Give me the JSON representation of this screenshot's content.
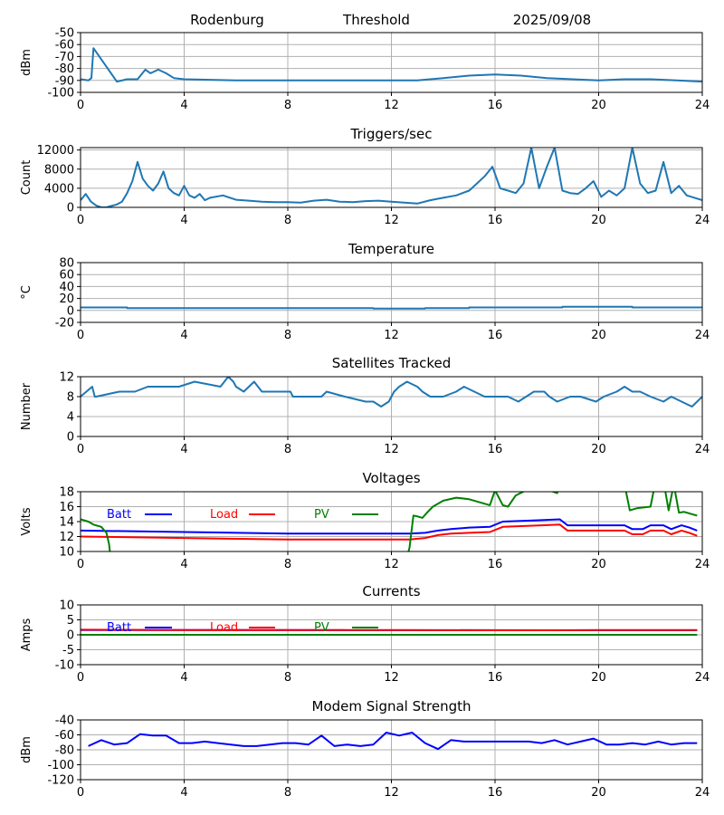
{
  "header": {
    "site": "Rodenburg",
    "mode": "Threshold",
    "date": "2025/09/08"
  },
  "chart_data": [
    {
      "type": "line",
      "title": "",
      "ylabel": "dBm",
      "ylim": [
        -100,
        -50
      ],
      "yticks": [
        "-50",
        "-60",
        "-70",
        "-80",
        "-90",
        "-100"
      ],
      "xlim": [
        0,
        24
      ],
      "xticks": [
        "0",
        "4",
        "8",
        "12",
        "16",
        "20",
        "24"
      ],
      "series": [
        {
          "color": "#1f77b4",
          "x": [
            0,
            0.3,
            0.42,
            0.5,
            1.4,
            1.8,
            2.2,
            2.5,
            2.7,
            3.0,
            3.3,
            3.6,
            4,
            6,
            8,
            10,
            12,
            13,
            14,
            15,
            16,
            17,
            18,
            19,
            20,
            21,
            22,
            23,
            24
          ],
          "y": [
            -89,
            -90,
            -88,
            -63,
            -91,
            -89,
            -89,
            -81,
            -84,
            -81,
            -84,
            -88,
            -89,
            -90,
            -90,
            -90,
            -90,
            -90,
            -88,
            -86,
            -85,
            -86,
            -88,
            -89,
            -90,
            -89,
            -89,
            -90,
            -91
          ]
        }
      ]
    },
    {
      "type": "line",
      "title": "Triggers/sec",
      "ylabel": "Count",
      "ylim": [
        0,
        12500
      ],
      "yticks": [
        "0",
        "4000",
        "8000",
        "12000"
      ],
      "xlim": [
        0,
        24
      ],
      "xticks": [
        "0",
        "4",
        "8",
        "12",
        "16",
        "20",
        "24"
      ],
      "series": [
        {
          "color": "#1f77b4",
          "x": [
            0,
            0.2,
            0.4,
            0.6,
            0.8,
            1.0,
            1.2,
            1.4,
            1.6,
            1.8,
            2.0,
            2.2,
            2.4,
            2.6,
            2.8,
            3.0,
            3.2,
            3.4,
            3.6,
            3.8,
            4.0,
            4.2,
            4.4,
            4.6,
            4.8,
            5.0,
            5.5,
            6.0,
            6.5,
            7.0,
            7.5,
            8.0,
            8.5,
            9.0,
            9.5,
            10.0,
            10.5,
            11.0,
            11.5,
            12.0,
            12.5,
            13.0,
            13.5,
            14.0,
            14.5,
            15.0,
            15.3,
            15.6,
            15.9,
            16.2,
            16.5,
            16.8,
            17.1,
            17.4,
            17.7,
            18.0,
            18.3,
            18.6,
            18.9,
            19.2,
            19.5,
            19.8,
            20.1,
            20.4,
            20.7,
            21.0,
            21.3,
            21.6,
            21.9,
            22.2,
            22.5,
            22.8,
            23.1,
            23.4,
            23.7,
            24.0
          ],
          "y": [
            1500,
            2800,
            1200,
            400,
            0,
            0,
            300,
            600,
            1200,
            3000,
            5500,
            9500,
            6000,
            4500,
            3500,
            5000,
            7500,
            4000,
            3000,
            2500,
            4500,
            2500,
            2000,
            2800,
            1500,
            2000,
            2500,
            1600,
            1400,
            1200,
            1100,
            1100,
            1000,
            1400,
            1600,
            1200,
            1100,
            1300,
            1400,
            1200,
            1000,
            800,
            1500,
            2000,
            2500,
            3500,
            5000,
            6500,
            8500,
            4000,
            3500,
            3000,
            5000,
            12500,
            4000,
            8500,
            12500,
            3500,
            3000,
            2800,
            4000,
            5500,
            2200,
            3500,
            2500,
            4000,
            12500,
            5000,
            3000,
            3500,
            9500,
            3000,
            4500,
            2500,
            2000,
            1500
          ]
        }
      ]
    },
    {
      "type": "line",
      "title": "Temperature",
      "ylabel": "°C",
      "ylim": [
        -20,
        80
      ],
      "yticks": [
        "-20",
        "0",
        "20",
        "40",
        "60",
        "80"
      ],
      "xlim": [
        0,
        24
      ],
      "xticks": [
        "0",
        "4",
        "8",
        "12",
        "16",
        "20",
        "24"
      ],
      "series": [
        {
          "color": "#1f77b4",
          "x": [
            0,
            1.8,
            1.8,
            11.3,
            11.3,
            13.3,
            13.3,
            15.0,
            15.0,
            18.6,
            18.6,
            21.3,
            21.3,
            24
          ],
          "y": [
            5,
            5,
            4,
            4,
            3,
            3,
            4,
            4,
            5,
            5,
            6,
            6,
            5,
            5
          ]
        }
      ]
    },
    {
      "type": "line",
      "title": "Satellites Tracked",
      "ylabel": "Number",
      "ylim": [
        0,
        12
      ],
      "yticks": [
        "0",
        "4",
        "8",
        "12"
      ],
      "xlim": [
        0,
        24
      ],
      "xticks": [
        "0",
        "4",
        "8",
        "12",
        "16",
        "20",
        "24"
      ],
      "series": [
        {
          "color": "#1f77b4",
          "x": [
            0,
            0.45,
            0.5,
            0.55,
            0.6,
            1.5,
            2.1,
            2.6,
            3.1,
            3.8,
            4.4,
            5.4,
            5.7,
            5.9,
            6.0,
            6.3,
            6.7,
            7.0,
            8.1,
            8.2,
            9.3,
            9.5,
            10.2,
            11.0,
            11.3,
            11.6,
            11.9,
            12.1,
            12.3,
            12.6,
            13.0,
            13.2,
            13.5,
            14.0,
            14.5,
            14.8,
            15.2,
            15.6,
            16.2,
            16.5,
            16.9,
            17.2,
            17.5,
            17.9,
            18.1,
            18.4,
            18.9,
            19.3,
            19.9,
            20.2,
            20.7,
            21.0,
            21.3,
            21.6,
            22.0,
            22.5,
            22.8,
            23.2,
            23.6,
            24
          ],
          "y": [
            8,
            10,
            9,
            8,
            8,
            9,
            9,
            10,
            10,
            10,
            11,
            10,
            12,
            11,
            10,
            9,
            11,
            9,
            9,
            8,
            8,
            9,
            8,
            7,
            7,
            6,
            7,
            9,
            10,
            11,
            10,
            9,
            8,
            8,
            9,
            10,
            9,
            8,
            8,
            8,
            7,
            8,
            9,
            9,
            8,
            7,
            8,
            8,
            7,
            8,
            9,
            10,
            9,
            9,
            8,
            7,
            8,
            7,
            6,
            8
          ]
        }
      ]
    },
    {
      "type": "line",
      "title": "Voltages",
      "ylabel": "Volts",
      "ylim": [
        10,
        18
      ],
      "yticks": [
        "10",
        "12",
        "14",
        "16",
        "18"
      ],
      "xlim": [
        0,
        24
      ],
      "xticks": [
        "0",
        "4",
        "8",
        "12",
        "16",
        "20",
        "24"
      ],
      "legend": {
        "entries": [
          "Batt",
          "Load",
          "PV"
        ]
      },
      "series": [
        {
          "name": "Batt",
          "color": "#0000ff",
          "x": [
            0,
            4,
            8,
            12,
            12.7,
            13.3,
            13.8,
            14.3,
            15,
            15.8,
            16.3,
            17,
            17.8,
            18.5,
            18.8,
            19,
            20,
            21,
            21.3,
            21.7,
            22,
            22.5,
            22.8,
            23.2,
            23.5,
            23.8
          ],
          "y": [
            12.8,
            12.6,
            12.4,
            12.4,
            12.4,
            12.5,
            12.8,
            13.0,
            13.2,
            13.3,
            14.0,
            14.1,
            14.2,
            14.3,
            13.5,
            13.5,
            13.5,
            13.5,
            13.0,
            13.0,
            13.5,
            13.5,
            13.0,
            13.5,
            13.2,
            12.8
          ]
        },
        {
          "name": "Load",
          "color": "#ff0000",
          "x": [
            0,
            4,
            8,
            12,
            12.7,
            13.3,
            13.8,
            14.3,
            15,
            15.8,
            16.3,
            17,
            17.8,
            18.5,
            18.8,
            19,
            20,
            21,
            21.3,
            21.7,
            22,
            22.5,
            22.8,
            23.2,
            23.5,
            23.8
          ],
          "y": [
            12.0,
            11.8,
            11.6,
            11.6,
            11.6,
            11.8,
            12.2,
            12.4,
            12.5,
            12.6,
            13.3,
            13.4,
            13.5,
            13.6,
            12.8,
            12.8,
            12.8,
            12.8,
            12.3,
            12.3,
            12.8,
            12.8,
            12.3,
            12.8,
            12.5,
            12.1
          ]
        },
        {
          "name": "PV",
          "color": "#008000",
          "x": [
            0,
            0.3,
            0.5,
            0.8,
            1.0,
            1.1,
            1.2,
            12.5,
            12.7,
            12.85,
            13.0,
            13.2,
            13.4,
            13.6,
            14.0,
            14.5,
            15.0,
            15.5,
            15.8,
            16.0,
            16.3,
            16.5,
            16.8,
            17.2,
            18.0,
            18.4,
            18.45,
            18.5,
            19.0,
            20.0,
            21.0,
            21.2,
            21.5,
            22.0,
            22.2,
            22.5,
            22.7,
            22.9,
            23.1,
            23.3,
            23.6,
            23.8
          ],
          "y": [
            14.3,
            14.0,
            13.6,
            13.3,
            12.5,
            11.0,
            8.0,
            8.0,
            10.5,
            14.8,
            14.7,
            14.5,
            15.3,
            16.0,
            16.8,
            17.2,
            17.0,
            16.5,
            16.2,
            18.2,
            16.2,
            16.0,
            17.5,
            18.2,
            18.3,
            17.8,
            18.5,
            19.0,
            19.0,
            19.0,
            19.0,
            15.5,
            15.8,
            16.0,
            19.5,
            19.5,
            15.5,
            19.0,
            15.2,
            15.3,
            15.0,
            14.8
          ]
        }
      ]
    },
    {
      "type": "line",
      "title": "Currents",
      "ylabel": "Amps",
      "ylim": [
        -10,
        10
      ],
      "yticks": [
        "-10",
        "-5",
        "0",
        "5",
        "10"
      ],
      "xlim": [
        0,
        24
      ],
      "xticks": [
        "0",
        "4",
        "8",
        "12",
        "16",
        "20",
        "24"
      ],
      "legend": {
        "entries": [
          "Batt",
          "Load",
          "PV"
        ]
      },
      "series": [
        {
          "name": "Batt",
          "color": "#0000ff",
          "x": [
            0,
            23.8
          ],
          "y": [
            1.6,
            1.5
          ]
        },
        {
          "name": "Load",
          "color": "#ff0000",
          "x": [
            0,
            4,
            8,
            12,
            16,
            18,
            20,
            23.8
          ],
          "y": [
            1.7,
            1.6,
            1.6,
            1.6,
            1.5,
            1.5,
            1.6,
            1.6
          ]
        },
        {
          "name": "PV",
          "color": "#008000",
          "x": [
            0,
            23.8
          ],
          "y": [
            0,
            0
          ]
        }
      ]
    },
    {
      "type": "line",
      "title": "Modem Signal Strength",
      "ylabel": "dBm",
      "ylim": [
        -120,
        -40
      ],
      "yticks": [
        "-40",
        "-60",
        "-80",
        "-100",
        "-120"
      ],
      "xlim": [
        0,
        24
      ],
      "xticks": [
        "0",
        "4",
        "8",
        "12",
        "16",
        "20",
        "24"
      ],
      "series": [
        {
          "color": "#0000ff",
          "x": [
            0.3,
            0.8,
            1.3,
            1.8,
            2.3,
            2.8,
            3.3,
            3.8,
            4.3,
            4.8,
            5.3,
            5.8,
            6.3,
            6.8,
            7.3,
            7.8,
            8.3,
            8.8,
            9.3,
            9.8,
            10.3,
            10.8,
            11.3,
            11.8,
            12.3,
            12.8,
            13.3,
            13.8,
            14.3,
            14.8,
            15.3,
            15.8,
            16.3,
            16.8,
            17.3,
            17.8,
            18.3,
            18.8,
            19.3,
            19.8,
            20.3,
            20.8,
            21.3,
            21.8,
            22.3,
            22.8,
            23.3,
            23.8
          ],
          "y": [
            -75,
            -67,
            -73,
            -71,
            -59,
            -61,
            -61,
            -71,
            -71,
            -69,
            -71,
            -73,
            -75,
            -75,
            -73,
            -71,
            -71,
            -73,
            -61,
            -75,
            -73,
            -75,
            -73,
            -57,
            -61,
            -57,
            -71,
            -79,
            -67,
            -69,
            -69,
            -69,
            -69,
            -69,
            -69,
            -71,
            -67,
            -73,
            -69,
            -65,
            -73,
            -73,
            -71,
            -73,
            -69,
            -73,
            -71,
            -71
          ]
        }
      ]
    }
  ]
}
